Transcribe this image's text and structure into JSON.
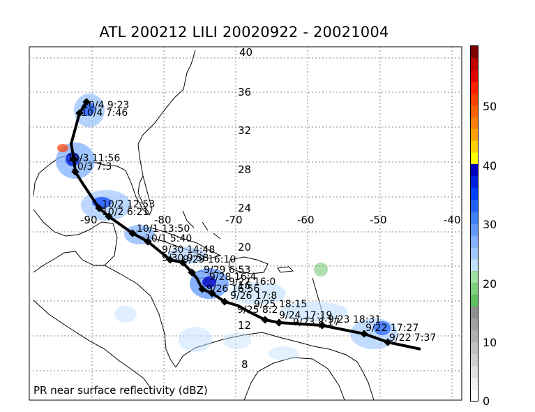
{
  "title": "ATL 200212 LILI 20020922 - 20021004",
  "caption": "PR near surface reflectivity (dBZ)",
  "lat_labels": [
    "40",
    "36",
    "32",
    "28",
    "24",
    "20",
    "16",
    "12",
    "8"
  ],
  "lon_labels": [
    "-90",
    "-80",
    "-70",
    "-60",
    "-50",
    "-40"
  ],
  "colorbar": {
    "ticks": [
      "50",
      "40",
      "30",
      "20",
      "10",
      "0"
    ],
    "colors": [
      "#ffffff",
      "#f0f0f0",
      "#e0e0e0",
      "#d0d0d0",
      "#c0c0c0",
      "#b0b0b0",
      "#a0a0a0",
      "#909090",
      "#60c060",
      "#80d080",
      "#a0e0a0",
      "#c0e0ff",
      "#a0c8ff",
      "#80b0ff",
      "#6098ff",
      "#4080ff",
      "#2060ff",
      "#0040ff",
      "#0020e0",
      "#0000c0",
      "#ffff00",
      "#ffd000",
      "#ffa000",
      "#ff8000",
      "#ff6000",
      "#ff4000",
      "#ff2000",
      "#e00000",
      "#c00000",
      "#800000"
    ]
  },
  "track_labels": [
    "10/4 9:23",
    "10/4 7:46",
    "10/3 11:56",
    "10/3 7:3",
    "10/2 12:53",
    "10/2 6:21",
    "10/1 13:50",
    "10/1 5:40",
    "9/30 14:48",
    "9/30 9:58",
    "9/29 16:10",
    "9/29 6:53",
    "9/28 16:4",
    "9/27 16:0",
    "9/26 16:56",
    "9/26 17:8",
    "9/25 18:15",
    "9/25 8:2",
    "9/24 17:19",
    "9/23 18:31",
    "9/23 8:17",
    "9/22 17:27",
    "9/22 7:37"
  ]
}
